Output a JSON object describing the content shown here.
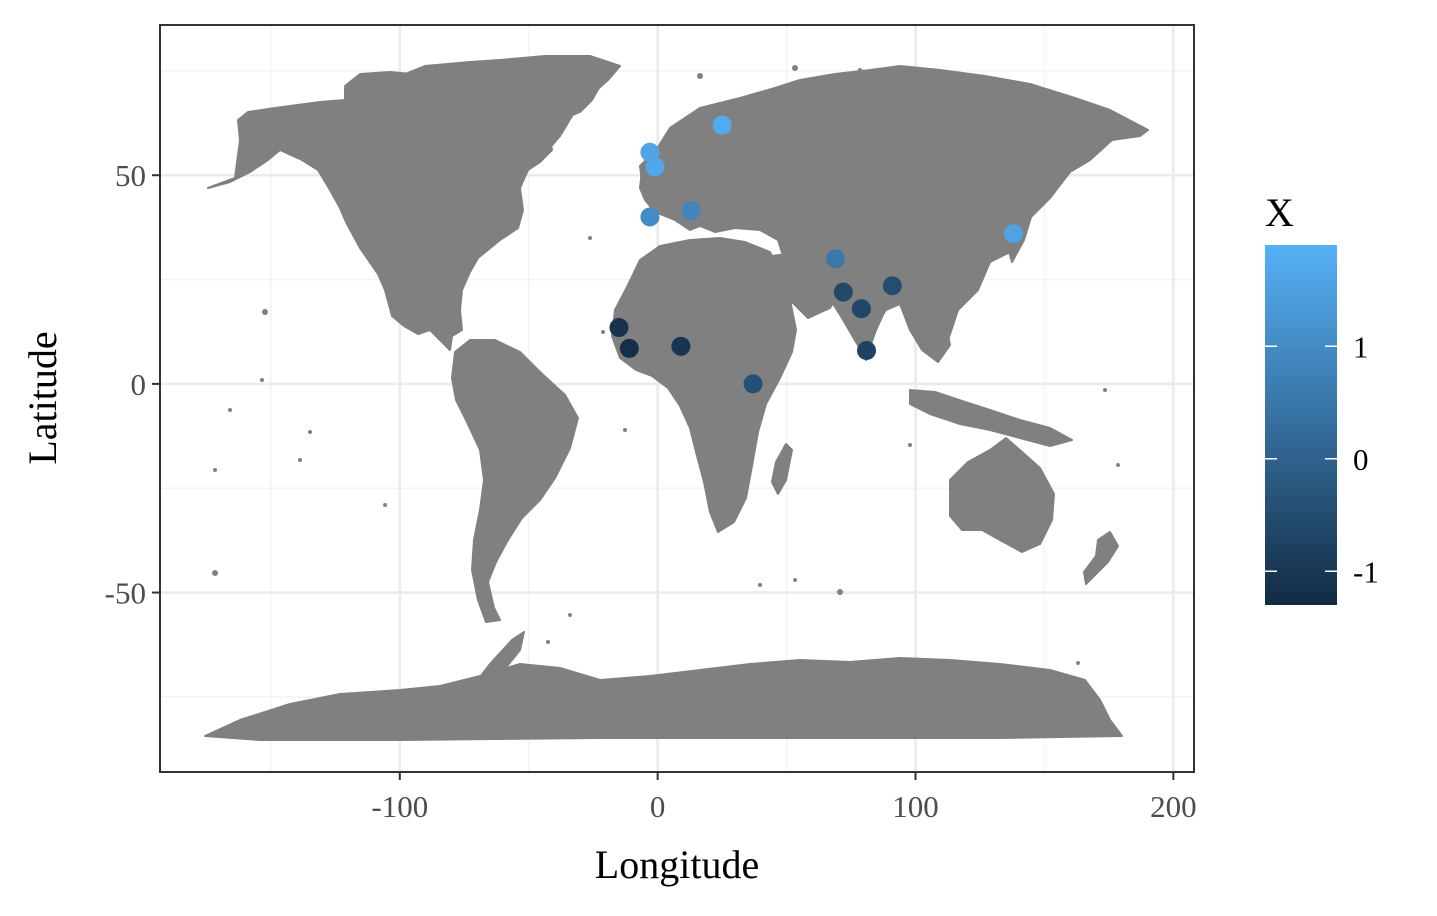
{
  "chart_data": {
    "type": "scatter",
    "xlabel": "Longitude",
    "ylabel": "Latitude",
    "xlim": [
      -193,
      208
    ],
    "ylim": [
      -93,
      86
    ],
    "x_ticks": [
      -100,
      0,
      100,
      200
    ],
    "x_tick_labels": [
      "-100",
      "0",
      "100",
      "200"
    ],
    "y_ticks": [
      -50,
      0,
      50
    ],
    "y_tick_labels": [
      "-50",
      "0",
      "50"
    ],
    "x_minor_ticks": [
      -150,
      -50,
      50,
      150
    ],
    "y_minor_ticks": [
      -75,
      -25,
      25,
      75
    ],
    "grid": true,
    "basemap": "world land masses (grey)",
    "land_color": "#808080",
    "legend": {
      "title": "X",
      "placement": "right",
      "type": "colorbar",
      "range": [
        -1.3,
        1.9
      ],
      "ticks": [
        -1,
        0,
        1
      ],
      "tick_labels": [
        "-1",
        "0",
        "1"
      ],
      "low_color": "#132B43",
      "high_color": "#56B1F7"
    },
    "points": [
      {
        "x": 25,
        "y": 62,
        "value": 1.75
      },
      {
        "x": -3,
        "y": 55.5,
        "value": 1.6
      },
      {
        "x": -1,
        "y": 52,
        "value": 1.65
      },
      {
        "x": 138,
        "y": 36,
        "value": 1.55
      },
      {
        "x": -3,
        "y": 40,
        "value": 1.0
      },
      {
        "x": 13,
        "y": 41.5,
        "value": 0.85
      },
      {
        "x": 69,
        "y": 30,
        "value": 0.55
      },
      {
        "x": 91,
        "y": 23.5,
        "value": -0.5
      },
      {
        "x": 72,
        "y": 22,
        "value": -0.6
      },
      {
        "x": 79,
        "y": 18,
        "value": -0.65
      },
      {
        "x": 81,
        "y": 8,
        "value": -0.75
      },
      {
        "x": 37,
        "y": 0,
        "value": -0.4
      },
      {
        "x": 9,
        "y": 9,
        "value": -1.05
      },
      {
        "x": -15,
        "y": 13.5,
        "value": -1.1
      },
      {
        "x": -11,
        "y": 8.5,
        "value": -1.2
      }
    ]
  }
}
